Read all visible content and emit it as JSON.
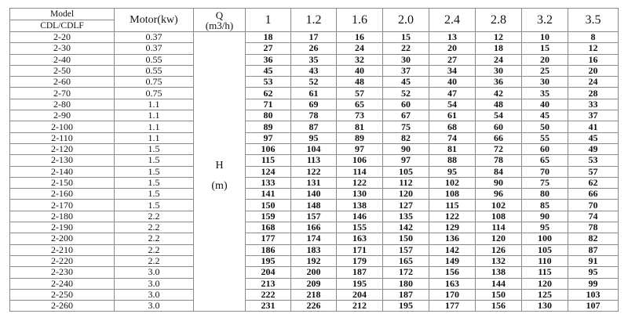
{
  "header": {
    "model_label": "Model",
    "model_sub_label": "CDL/CDLF",
    "motor_label": "Motor(kw)",
    "q_label": "Q",
    "q_unit": "(m3/h)",
    "h_label": "H",
    "h_unit": "(m)",
    "flows": [
      "1",
      "1.2",
      "1.6",
      "2.0",
      "2.4",
      "2.8",
      "3.2",
      "3.5"
    ]
  },
  "rows": [
    {
      "model": "2-20",
      "motor": "0.37",
      "h": [
        "18",
        "17",
        "16",
        "15",
        "13",
        "12",
        "10",
        "8"
      ]
    },
    {
      "model": "2-30",
      "motor": "0.37",
      "h": [
        "27",
        "26",
        "24",
        "22",
        "20",
        "18",
        "15",
        "12"
      ]
    },
    {
      "model": "2-40",
      "motor": "0.55",
      "h": [
        "36",
        "35",
        "32",
        "30",
        "27",
        "24",
        "20",
        "16"
      ]
    },
    {
      "model": "2-50",
      "motor": "0.55",
      "h": [
        "45",
        "43",
        "40",
        "37",
        "34",
        "30",
        "25",
        "20"
      ]
    },
    {
      "model": "2-60",
      "motor": "0.75",
      "h": [
        "53",
        "52",
        "48",
        "45",
        "40",
        "36",
        "30",
        "24"
      ]
    },
    {
      "model": "2-70",
      "motor": "0.75",
      "h": [
        "62",
        "61",
        "57",
        "52",
        "47",
        "42",
        "35",
        "28"
      ]
    },
    {
      "model": "2-80",
      "motor": "1.1",
      "h": [
        "71",
        "69",
        "65",
        "60",
        "54",
        "48",
        "40",
        "33"
      ]
    },
    {
      "model": "2-90",
      "motor": "1.1",
      "h": [
        "80",
        "78",
        "73",
        "67",
        "61",
        "54",
        "45",
        "37"
      ]
    },
    {
      "model": "2-100",
      "motor": "1.1",
      "h": [
        "89",
        "87",
        "81",
        "75",
        "68",
        "60",
        "50",
        "41"
      ]
    },
    {
      "model": "2-110",
      "motor": "1.1",
      "h": [
        "97",
        "95",
        "89",
        "82",
        "74",
        "66",
        "55",
        "45"
      ]
    },
    {
      "model": "2-120",
      "motor": "1.5",
      "h": [
        "106",
        "104",
        "97",
        "90",
        "81",
        "72",
        "60",
        "49"
      ]
    },
    {
      "model": "2-130",
      "motor": "1.5",
      "h": [
        "115",
        "113",
        "106",
        "97",
        "88",
        "78",
        "65",
        "53"
      ]
    },
    {
      "model": "2-140",
      "motor": "1.5",
      "h": [
        "124",
        "122",
        "114",
        "105",
        "95",
        "84",
        "70",
        "57"
      ]
    },
    {
      "model": "2-150",
      "motor": "1.5",
      "h": [
        "133",
        "131",
        "122",
        "112",
        "102",
        "90",
        "75",
        "62"
      ]
    },
    {
      "model": "2-160",
      "motor": "1.5",
      "h": [
        "141",
        "140",
        "130",
        "120",
        "108",
        "96",
        "80",
        "66"
      ]
    },
    {
      "model": "2-170",
      "motor": "1.5",
      "h": [
        "150",
        "148",
        "138",
        "127",
        "115",
        "102",
        "85",
        "70"
      ]
    },
    {
      "model": "2-180",
      "motor": "2.2",
      "h": [
        "159",
        "157",
        "146",
        "135",
        "122",
        "108",
        "90",
        "74"
      ]
    },
    {
      "model": "2-190",
      "motor": "2.2",
      "h": [
        "168",
        "166",
        "155",
        "142",
        "129",
        "114",
        "95",
        "78"
      ]
    },
    {
      "model": "2-200",
      "motor": "2.2",
      "h": [
        "177",
        "174",
        "163",
        "150",
        "136",
        "120",
        "100",
        "82"
      ]
    },
    {
      "model": "2-210",
      "motor": "2.2",
      "h": [
        "186",
        "183",
        "171",
        "157",
        "142",
        "126",
        "105",
        "87"
      ]
    },
    {
      "model": "2-220",
      "motor": "2.2",
      "h": [
        "195",
        "192",
        "179",
        "165",
        "149",
        "132",
        "110",
        "91"
      ]
    },
    {
      "model": "2-230",
      "motor": "3.0",
      "h": [
        "204",
        "200",
        "187",
        "172",
        "156",
        "138",
        "115",
        "95"
      ]
    },
    {
      "model": "2-240",
      "motor": "3.0",
      "h": [
        "213",
        "209",
        "195",
        "180",
        "163",
        "144",
        "120",
        "99"
      ]
    },
    {
      "model": "2-250",
      "motor": "3.0",
      "h": [
        "222",
        "218",
        "204",
        "187",
        "170",
        "150",
        "125",
        "103"
      ]
    },
    {
      "model": "2-260",
      "motor": "3.0",
      "h": [
        "231",
        "226",
        "212",
        "195",
        "177",
        "156",
        "130",
        "107"
      ]
    }
  ]
}
